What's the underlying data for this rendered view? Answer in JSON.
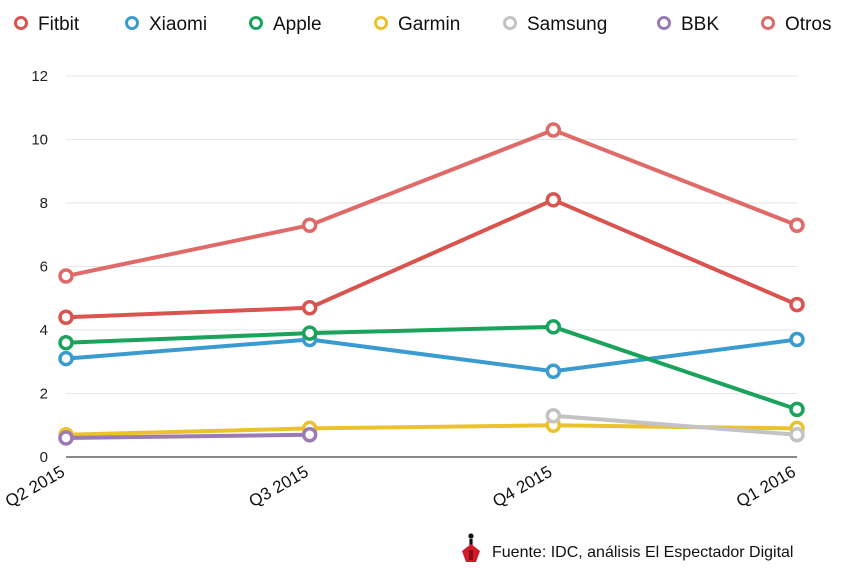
{
  "chart_data": {
    "type": "line",
    "categories": [
      "Q2 2015",
      "Q3 2015",
      "Q4 2015",
      "Q1 2016"
    ],
    "ylim": [
      0,
      12
    ],
    "yticks": [
      0,
      2,
      4,
      6,
      8,
      10,
      12
    ],
    "grid": true,
    "legend": "top",
    "series": [
      {
        "name": "Fitbit",
        "color": "#d9534f",
        "values": [
          4.4,
          4.7,
          8.1,
          4.8
        ]
      },
      {
        "name": "Xiaomi",
        "color": "#3a9bd0",
        "values": [
          3.1,
          3.7,
          2.7,
          3.7
        ]
      },
      {
        "name": "Apple",
        "color": "#1aa35c",
        "values": [
          3.6,
          3.9,
          4.1,
          1.5
        ]
      },
      {
        "name": "Garmin",
        "color": "#ecc12e",
        "values": [
          0.7,
          0.9,
          1.0,
          0.9
        ]
      },
      {
        "name": "Samsung",
        "color": "#c3c3c3",
        "values": [
          null,
          null,
          1.3,
          0.7
        ]
      },
      {
        "name": "BBK",
        "color": "#9b7bb5",
        "values": [
          0.6,
          0.7,
          null,
          null
        ]
      },
      {
        "name": "Otros",
        "color": "#e06a68",
        "values": [
          5.7,
          7.3,
          10.3,
          7.3
        ]
      }
    ],
    "source": "Fuente: IDC, análisis El Espectador Digital"
  },
  "logo": {
    "icon": "el-espectador-logo-icon"
  }
}
